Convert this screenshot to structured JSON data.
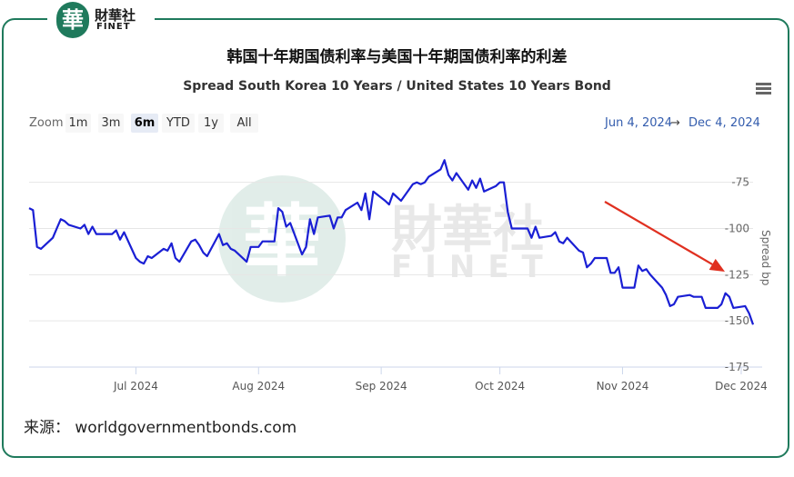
{
  "brand": {
    "badge": "華",
    "name_cn": "財華社",
    "name_en": "FINET"
  },
  "watermark": {
    "badge": "華",
    "name_cn": "財華社",
    "name_en": "FINET"
  },
  "title_cn": "韩国十年期国债利率与美国十年期国债利率的利差",
  "subtitle": "Spread South Korea 10 Years / United States 10 Years Bond",
  "zoom": {
    "label": "Zoom",
    "buttons": [
      "1m",
      "3m",
      "6m",
      "YTD",
      "1y",
      "All"
    ],
    "active": "6m"
  },
  "range": {
    "from": "Jun 4, 2024",
    "arrow": "→",
    "to": "Dec 4, 2024"
  },
  "source": "来源：  worldgovernmentbonds.com",
  "colors": {
    "line": "#1a1fd4",
    "arrow": "#e03020",
    "frame": "#1f7a5c",
    "grid": "#e6e6e6"
  },
  "chart_data": {
    "type": "line",
    "title": "Spread South Korea 10 Years / United States 10 Years Bond",
    "ylabel": "Spread bp",
    "ylim": [
      -175,
      -55
    ],
    "y_ticks": [
      -75,
      -100,
      -125,
      -150,
      -175
    ],
    "x_ticks": [
      {
        "date": "2024-07-01",
        "label": "Jul 2024"
      },
      {
        "date": "2024-08-01",
        "label": "Aug 2024"
      },
      {
        "date": "2024-09-01",
        "label": "Sep 2024"
      },
      {
        "date": "2024-10-01",
        "label": "Oct 2024"
      },
      {
        "date": "2024-11-01",
        "label": "Nov 2024"
      },
      {
        "date": "2024-12-01",
        "label": "Dec 2024"
      }
    ],
    "xlim": [
      "2024-06-04",
      "2024-12-04"
    ],
    "annotation": "arrow indicating downward trend",
    "grid": true,
    "series": [
      {
        "x": [
          "2024-06-04",
          "2024-06-05",
          "2024-06-06",
          "2024-06-07",
          "2024-06-10",
          "2024-06-11",
          "2024-06-12",
          "2024-06-13",
          "2024-06-14",
          "2024-06-17",
          "2024-06-18",
          "2024-06-19",
          "2024-06-20",
          "2024-06-21",
          "2024-06-24",
          "2024-06-25",
          "2024-06-26",
          "2024-06-27",
          "2024-06-28",
          "2024-07-01",
          "2024-07-02",
          "2024-07-03",
          "2024-07-04",
          "2024-07-05",
          "2024-07-08",
          "2024-07-09",
          "2024-07-10",
          "2024-07-11",
          "2024-07-12",
          "2024-07-15",
          "2024-07-16",
          "2024-07-17",
          "2024-07-18",
          "2024-07-19",
          "2024-07-22",
          "2024-07-23",
          "2024-07-24",
          "2024-07-25",
          "2024-07-26",
          "2024-07-29",
          "2024-07-30",
          "2024-07-31",
          "2024-08-01",
          "2024-08-02",
          "2024-08-05",
          "2024-08-06",
          "2024-08-07",
          "2024-08-08",
          "2024-08-09",
          "2024-08-12",
          "2024-08-13",
          "2024-08-14",
          "2024-08-15",
          "2024-08-16",
          "2024-08-19",
          "2024-08-20",
          "2024-08-21",
          "2024-08-22",
          "2024-08-23",
          "2024-08-26",
          "2024-08-27",
          "2024-08-28",
          "2024-08-29",
          "2024-08-30",
          "2024-09-02",
          "2024-09-03",
          "2024-09-04",
          "2024-09-05",
          "2024-09-06",
          "2024-09-09",
          "2024-09-10",
          "2024-09-11",
          "2024-09-12",
          "2024-09-13",
          "2024-09-16",
          "2024-09-17",
          "2024-09-18",
          "2024-09-19",
          "2024-09-20",
          "2024-09-23",
          "2024-09-24",
          "2024-09-25",
          "2024-09-26",
          "2024-09-27",
          "2024-09-30",
          "2024-10-01",
          "2024-10-02",
          "2024-10-03",
          "2024-10-04",
          "2024-10-07",
          "2024-10-08",
          "2024-10-09",
          "2024-10-10",
          "2024-10-11",
          "2024-10-14",
          "2024-10-15",
          "2024-10-16",
          "2024-10-17",
          "2024-10-18",
          "2024-10-21",
          "2024-10-22",
          "2024-10-23",
          "2024-10-24",
          "2024-10-25",
          "2024-10-28",
          "2024-10-29",
          "2024-10-30",
          "2024-10-31",
          "2024-11-01",
          "2024-11-04",
          "2024-11-05",
          "2024-11-06",
          "2024-11-07",
          "2024-11-08",
          "2024-11-11",
          "2024-11-12",
          "2024-11-13",
          "2024-11-14",
          "2024-11-15",
          "2024-11-18",
          "2024-11-19",
          "2024-11-20",
          "2024-11-21",
          "2024-11-22",
          "2024-11-25",
          "2024-11-26",
          "2024-11-27",
          "2024-11-28",
          "2024-11-29",
          "2024-12-02",
          "2024-12-03",
          "2024-12-04"
        ],
        "y": [
          -89,
          -90,
          -110,
          -111,
          -105,
          -100,
          -95,
          -96,
          -98,
          -100,
          -98,
          -103,
          -99,
          -103,
          -103,
          -103,
          -101,
          -106,
          -102,
          -116,
          -118,
          -119,
          -115,
          -116,
          -111,
          -112,
          -108,
          -116,
          -118,
          -107,
          -106,
          -109,
          -113,
          -115,
          -103,
          -109,
          -108,
          -111,
          -112,
          -118,
          -110,
          -110,
          -110,
          -107,
          -107,
          -89,
          -91,
          -99,
          -97,
          -114,
          -110,
          -95,
          -103,
          -94,
          -93,
          -100,
          -94,
          -94,
          -90,
          -86,
          -90,
          -81,
          -95,
          -80,
          -85,
          -87,
          -81,
          -83,
          -85,
          -76,
          -75,
          -76,
          -75,
          -72,
          -68,
          -63,
          -71,
          -74,
          -70,
          -79,
          -74,
          -78,
          -73,
          -80,
          -77,
          -75,
          -75,
          -91,
          -100,
          -100,
          -100,
          -105,
          -99,
          -105,
          -104,
          -102,
          -107,
          -108,
          -105,
          -112,
          -113,
          -121,
          -119,
          -116,
          -116,
          -124,
          -124,
          -121,
          -132,
          -132,
          -120,
          -123,
          -122,
          -125,
          -132,
          -136,
          -142,
          -141,
          -137,
          -136,
          -137,
          -137,
          -137,
          -143,
          -143,
          -141,
          -135,
          -137,
          -143,
          -142,
          -146,
          -152
        ]
      }
    ]
  }
}
